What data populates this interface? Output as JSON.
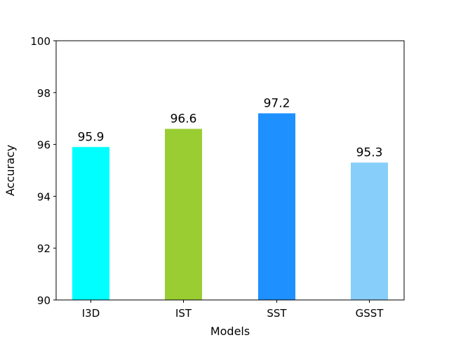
{
  "chart_data": {
    "type": "bar",
    "categories": [
      "I3D",
      "IST",
      "SST",
      "GSST"
    ],
    "values": [
      95.9,
      96.6,
      97.2,
      95.3
    ],
    "data_labels": [
      "95.9",
      "96.6",
      "97.2",
      "95.3"
    ],
    "colors": [
      "#00ffff",
      "#9acd32",
      "#1e90ff",
      "#87cefa"
    ],
    "xlabel": "Models",
    "ylabel": "Accuracy",
    "ylim": [
      90,
      100
    ],
    "yticks": [
      90,
      92,
      94,
      96,
      98,
      100
    ],
    "ytick_labels": [
      "90",
      "92",
      "94",
      "96",
      "98",
      "100"
    ],
    "grid": false,
    "legend": "none"
  }
}
